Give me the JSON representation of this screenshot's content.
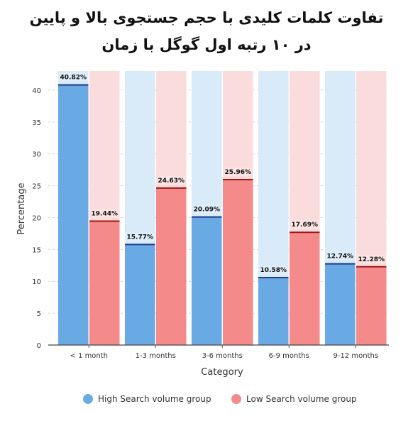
{
  "title_lines": [
    "تفاوت کلمات کلیدی با حجم جستجوی بالا و پایین",
    "در ۱۰ رتبه اول گوگل با زمان"
  ],
  "chart_data": {
    "type": "bar",
    "categories": [
      "< 1 month",
      "1-3 months",
      "3-6 months",
      "6-9 months",
      "9-12 months"
    ],
    "series": [
      {
        "name": "High Search volume group",
        "values": [
          40.82,
          15.77,
          20.09,
          10.58,
          12.74
        ],
        "color": "#6aaae4",
        "bg_color": "#d9eaf8",
        "label_bg": "#dfeefb"
      },
      {
        "name": "Low Search volume group",
        "values": [
          19.44,
          24.63,
          25.96,
          17.69,
          12.28
        ],
        "color": "#f48a8a",
        "bg_color": "#fbdcdd",
        "label_bg": "#fde5e5"
      }
    ],
    "value_labels": [
      [
        "40.82%",
        "15.77%",
        "20.09%",
        "10.58%",
        "12.74%"
      ],
      [
        "19.44%",
        "24.63%",
        "25.96%",
        "17.69%",
        "12.28%"
      ]
    ],
    "xlabel": "Category",
    "ylabel": "Percentage",
    "ylim": [
      0,
      43
    ],
    "yticks": [
      0,
      5,
      10,
      15,
      20,
      25,
      30,
      35,
      40
    ],
    "grid": "horizontal dashed",
    "legend_position": "bottom",
    "bar_top_line_color": "#1f3b8a",
    "low_bar_top_line_color": "#a01818"
  }
}
